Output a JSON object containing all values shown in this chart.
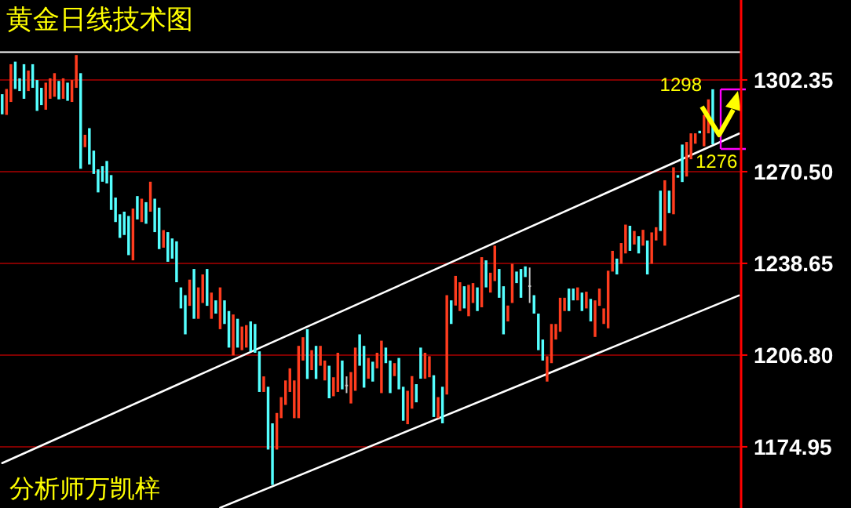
{
  "chart_data": {
    "type": "candlestick",
    "title": "黄金日线技术图",
    "annotations": [
      "分析师万凯梓",
      "1298",
      "1276"
    ],
    "categories": [
      null,
      null,
      null,
      null,
      null,
      null,
      null,
      null,
      null,
      null,
      null,
      null,
      null,
      null,
      null,
      null,
      null,
      null,
      null,
      null,
      null,
      null,
      null,
      null,
      null,
      null,
      null,
      null,
      null,
      null,
      null,
      null,
      null,
      null,
      null,
      null,
      null,
      null,
      null,
      null,
      null,
      null,
      null,
      null,
      null,
      null,
      null,
      null,
      null,
      null,
      null,
      null,
      null,
      null,
      null,
      null,
      null,
      null,
      null,
      null,
      null,
      null,
      null,
      null,
      null,
      null,
      null,
      null,
      null,
      null,
      null,
      null,
      null,
      null,
      null,
      null,
      null,
      null,
      null,
      null,
      null,
      null,
      null,
      null,
      null,
      null,
      null,
      null,
      null,
      null,
      null,
      null,
      null,
      null,
      null,
      null,
      null,
      null,
      null,
      null,
      null,
      null,
      null,
      null,
      null,
      null,
      null,
      null,
      null,
      null,
      null,
      null,
      null,
      null,
      null,
      null,
      null,
      null,
      null,
      null,
      null,
      null,
      null,
      null,
      null,
      null,
      null,
      null,
      null,
      null,
      null,
      null,
      null,
      null,
      null,
      null,
      null,
      null,
      null,
      null,
      null,
      null,
      null,
      null,
      null,
      null,
      null,
      null,
      null,
      null,
      null,
      null,
      null,
      null,
      null,
      null,
      null,
      null,
      null,
      null,
      null,
      null,
      null,
      null,
      null,
      null,
      null,
      null,
      null,
      null
    ],
    "ohlc": [
      [
        1297.4,
        1297.4,
        1290.4,
        1290.4
      ],
      [
        1290.2,
        1299.2,
        1290.2,
        1299.2
      ],
      [
        1294.7,
        1307.8,
        1294.7,
        1307.8
      ],
      [
        1308.7,
        1308.7,
        1299.2,
        1299.2
      ],
      [
        1302.9,
        1302.9,
        1298.5,
        1298.5
      ],
      [
        1307.8,
        1307.8,
        1295.8,
        1295.8
      ],
      [
        1298.5,
        1305.6,
        1298.5,
        1305.6
      ],
      [
        1307.8,
        1307.8,
        1299.6,
        1299.6
      ],
      [
        1302.3,
        1302.3,
        1291.6,
        1291.6
      ],
      [
        1299.6,
        1299.6,
        1293.6,
        1293.6
      ],
      [
        1292.0,
        1301.4,
        1292.0,
        1301.4
      ],
      [
        1295.8,
        1302.9,
        1295.8,
        1302.9
      ],
      [
        1296.5,
        1304.7,
        1296.5,
        1304.7
      ],
      [
        1302.0,
        1302.0,
        1295.6,
        1295.6
      ],
      [
        1295.8,
        1302.9,
        1295.8,
        1302.9
      ],
      [
        1301.4,
        1301.4,
        1295.1,
        1295.1
      ],
      [
        1294.7,
        1302.3,
        1294.7,
        1302.3
      ],
      [
        1299.6,
        1311.0,
        1299.6,
        1311.0
      ],
      [
        1304.7,
        1304.7,
        1271.5,
        1271.5
      ],
      [
        1279.0,
        1283.3,
        1279.0,
        1283.3
      ],
      [
        1285.6,
        1285.6,
        1273.0,
        1273.0
      ],
      [
        1277.8,
        1277.8,
        1269.7,
        1269.7
      ],
      [
        1271.3,
        1271.3,
        1263.3,
        1263.3
      ],
      [
        1272.4,
        1272.4,
        1267.0,
        1267.0
      ],
      [
        1274.2,
        1274.2,
        1266.4,
        1266.4
      ],
      [
        1269.3,
        1269.3,
        1257.2,
        1257.2
      ],
      [
        1261.5,
        1261.5,
        1253.0,
        1253.0
      ],
      [
        1255.7,
        1255.7,
        1247.5,
        1247.5
      ],
      [
        1256.6,
        1256.6,
        1248.5,
        1248.5
      ],
      [
        1255.1,
        1255.1,
        1241.5,
        1241.5
      ],
      [
        1239.7,
        1257.7,
        1239.7,
        1257.7
      ],
      [
        1262.0,
        1262.0,
        1253.9,
        1253.9
      ],
      [
        1253.0,
        1261.1,
        1253.0,
        1261.1
      ],
      [
        1259.9,
        1259.9,
        1252.4,
        1252.4
      ],
      [
        1256.6,
        1267.0,
        1256.6,
        1267.0
      ],
      [
        1261.1,
        1261.1,
        1249.5,
        1249.5
      ],
      [
        1258.0,
        1258.0,
        1243.6,
        1243.6
      ],
      [
        1244.1,
        1250.2,
        1244.1,
        1250.2
      ],
      [
        1249.5,
        1249.5,
        1239.2,
        1239.2
      ],
      [
        1247.3,
        1247.3,
        1240.3,
        1240.3
      ],
      [
        1246.3,
        1246.3,
        1232.1,
        1232.1
      ],
      [
        1230.3,
        1230.3,
        1223.0,
        1223.0
      ],
      [
        1227.6,
        1227.6,
        1214.0,
        1214.0
      ],
      [
        1223.9,
        1233.0,
        1223.9,
        1233.0
      ],
      [
        1236.7,
        1236.7,
        1219.4,
        1219.4
      ],
      [
        1219.4,
        1230.3,
        1219.4,
        1230.3
      ],
      [
        1224.9,
        1234.8,
        1224.9,
        1234.8
      ],
      [
        1236.7,
        1236.7,
        1223.9,
        1223.9
      ],
      [
        1219.4,
        1228.5,
        1219.4,
        1228.5
      ],
      [
        1225.8,
        1225.8,
        1221.2,
        1221.2
      ],
      [
        1215.8,
        1230.3,
        1215.8,
        1230.3
      ],
      [
        1225.8,
        1225.8,
        1217.6,
        1217.6
      ],
      [
        1222.1,
        1222.1,
        1209.4,
        1209.4
      ],
      [
        1206.7,
        1220.9,
        1206.7,
        1220.9
      ],
      [
        1219.4,
        1219.4,
        1209.4,
        1209.4
      ],
      [
        1208.5,
        1216.7,
        1208.5,
        1216.7
      ],
      [
        1209.4,
        1217.2,
        1209.4,
        1217.2
      ],
      [
        1218.5,
        1218.5,
        1208.1,
        1208.1
      ],
      [
        1217.6,
        1217.6,
        1207.6,
        1207.6
      ],
      [
        1208.1,
        1208.1,
        1194.0,
        1194.0
      ],
      [
        1194.0,
        1199.4,
        1194.0,
        1199.4
      ],
      [
        1195.8,
        1195.8,
        1174.0,
        1174.0
      ],
      [
        1183.1,
        1183.1,
        1161.7,
        1161.7
      ],
      [
        1174.0,
        1186.7,
        1174.0,
        1186.7
      ],
      [
        1184.9,
        1192.2,
        1184.9,
        1192.2
      ],
      [
        1189.5,
        1198.0,
        1189.5,
        1198.0
      ],
      [
        1194.0,
        1202.2,
        1194.0,
        1202.2
      ],
      [
        1184.9,
        1198.0,
        1184.9,
        1198.0
      ],
      [
        1184.9,
        1210.0,
        1184.9,
        1210.0
      ],
      [
        1204.9,
        1213.0,
        1204.9,
        1213.0
      ],
      [
        1215.8,
        1215.8,
        1198.5,
        1198.5
      ],
      [
        1201.6,
        1208.5,
        1201.6,
        1208.5
      ],
      [
        1210.0,
        1210.0,
        1198.5,
        1198.5
      ],
      [
        1203.1,
        1210.0,
        1203.1,
        1210.0
      ],
      [
        1198.0,
        1204.9,
        1198.0,
        1204.9
      ],
      [
        1203.1,
        1203.1,
        1191.8,
        1191.8
      ],
      [
        1192.5,
        1199.1,
        1192.5,
        1199.1
      ],
      [
        1194.0,
        1207.6,
        1194.0,
        1207.6
      ],
      [
        1204.9,
        1204.9,
        1194.9,
        1194.9
      ],
      [
        1196.5,
        1199.4,
        1193.6,
        1196.5
      ],
      [
        1190.0,
        1200.9,
        1190.0,
        1200.9
      ],
      [
        1194.4,
        1209.4,
        1194.4,
        1209.4
      ],
      [
        1214.0,
        1214.0,
        1203.1,
        1203.1
      ],
      [
        1210.0,
        1210.0,
        1195.5,
        1195.5
      ],
      [
        1198.6,
        1205.8,
        1198.6,
        1205.8
      ],
      [
        1204.5,
        1204.5,
        1197.6,
        1197.6
      ],
      [
        1202.2,
        1207.6,
        1202.2,
        1207.6
      ],
      [
        1193.6,
        1211.8,
        1193.6,
        1211.8
      ],
      [
        1209.4,
        1209.4,
        1204.0,
        1204.0
      ],
      [
        1204.9,
        1204.9,
        1193.6,
        1193.6
      ],
      [
        1199.5,
        1204.0,
        1199.5,
        1204.0
      ],
      [
        1205.8,
        1205.8,
        1194.9,
        1194.9
      ],
      [
        1195.8,
        1195.8,
        1184.0,
        1184.0
      ],
      [
        1182.8,
        1194.4,
        1182.8,
        1194.4
      ],
      [
        1188.2,
        1199.5,
        1188.2,
        1199.5
      ],
      [
        1196.7,
        1196.7,
        1190.4,
        1190.4
      ],
      [
        1209.4,
        1209.4,
        1198.6,
        1198.6
      ],
      [
        1198.6,
        1207.6,
        1198.6,
        1207.6
      ],
      [
        1199.1,
        1206.4,
        1199.1,
        1206.4
      ],
      [
        1199.8,
        1199.8,
        1185.3,
        1185.3
      ],
      [
        1184.9,
        1192.2,
        1184.9,
        1192.2
      ],
      [
        1195.8,
        1195.8,
        1183.1,
        1183.1
      ],
      [
        1193.1,
        1227.6,
        1193.1,
        1227.6
      ],
      [
        1225.8,
        1225.8,
        1217.6,
        1217.6
      ],
      [
        1224.0,
        1234.3,
        1224.0,
        1234.3
      ],
      [
        1222.1,
        1232.1,
        1222.1,
        1232.1
      ],
      [
        1230.7,
        1230.7,
        1223.0,
        1223.0
      ],
      [
        1220.3,
        1231.2,
        1220.3,
        1231.2
      ],
      [
        1224.9,
        1231.8,
        1224.9,
        1231.8
      ],
      [
        1230.3,
        1230.3,
        1222.1,
        1222.1
      ],
      [
        1223.4,
        1240.8,
        1223.4,
        1240.8
      ],
      [
        1239.7,
        1239.7,
        1230.3,
        1230.3
      ],
      [
        1228.5,
        1235.4,
        1228.5,
        1235.4
      ],
      [
        1232.5,
        1244.8,
        1232.5,
        1244.8
      ],
      [
        1236.7,
        1236.7,
        1226.7,
        1226.7
      ],
      [
        1230.7,
        1230.7,
        1214.0,
        1214.0
      ],
      [
        1218.5,
        1224.0,
        1218.5,
        1224.0
      ],
      [
        1224.9,
        1238.5,
        1224.9,
        1238.5
      ],
      [
        1235.8,
        1235.8,
        1231.8,
        1231.8
      ],
      [
        1236.7,
        1236.7,
        1226.7,
        1226.7
      ],
      [
        1237.6,
        1237.6,
        1233.9,
        1233.9
      ],
      [
        1231.0,
        1237.2,
        1224.9,
        1231.0
      ],
      [
        1227.6,
        1227.6,
        1221.2,
        1221.2
      ],
      [
        1221.2,
        1221.2,
        1208.5,
        1208.5
      ],
      [
        1212.2,
        1212.2,
        1204.9,
        1204.9
      ],
      [
        1197.6,
        1206.4,
        1197.6,
        1206.4
      ],
      [
        1204.0,
        1217.6,
        1204.0,
        1217.6
      ],
      [
        1212.2,
        1217.6,
        1212.2,
        1217.6
      ],
      [
        1214.9,
        1226.7,
        1214.9,
        1226.7
      ],
      [
        1222.1,
        1226.7,
        1222.1,
        1226.7
      ],
      [
        1229.9,
        1229.9,
        1222.1,
        1222.1
      ],
      [
        1229.9,
        1229.9,
        1225.8,
        1225.8
      ],
      [
        1225.8,
        1230.3,
        1225.8,
        1230.3
      ],
      [
        1228.5,
        1228.5,
        1222.1,
        1222.1
      ],
      [
        1223.0,
        1228.8,
        1223.0,
        1228.8
      ],
      [
        1226.3,
        1226.3,
        1218.5,
        1218.5
      ],
      [
        1213.1,
        1225.8,
        1213.1,
        1225.8
      ],
      [
        1223.9,
        1229.9,
        1223.9,
        1229.9
      ],
      [
        1217.6,
        1223.0,
        1217.6,
        1223.0
      ],
      [
        1216.1,
        1236.1,
        1216.1,
        1236.1
      ],
      [
        1235.8,
        1243.0,
        1235.8,
        1243.0
      ],
      [
        1240.3,
        1240.3,
        1234.8,
        1234.8
      ],
      [
        1238.5,
        1245.7,
        1238.5,
        1245.7
      ],
      [
        1242.1,
        1252.1,
        1242.1,
        1252.1
      ],
      [
        1251.7,
        1251.7,
        1243.0,
        1243.0
      ],
      [
        1245.2,
        1249.9,
        1245.2,
        1249.9
      ],
      [
        1248.1,
        1248.1,
        1242.1,
        1242.1
      ],
      [
        1244.8,
        1250.3,
        1244.8,
        1250.3
      ],
      [
        1246.6,
        1246.6,
        1234.8,
        1234.8
      ],
      [
        1238.5,
        1249.4,
        1238.5,
        1249.4
      ],
      [
        1246.6,
        1251.2,
        1246.6,
        1251.2
      ],
      [
        1263.9,
        1263.9,
        1249.9,
        1249.9
      ],
      [
        1244.8,
        1267.5,
        1244.8,
        1267.5
      ],
      [
        1263.9,
        1263.9,
        1256.1,
        1256.1
      ],
      [
        1255.7,
        1272.0,
        1255.7,
        1272.0
      ],
      [
        1269.3,
        1269.3,
        1268.4,
        1268.4
      ],
      [
        1279.9,
        1279.9,
        1266.9,
        1266.9
      ],
      [
        1268.8,
        1280.8,
        1268.8,
        1280.8
      ],
      [
        1274.8,
        1283.8,
        1274.8,
        1283.8
      ],
      [
        1280.2,
        1283.8,
        1280.2,
        1283.8
      ],
      [
        1284.7,
        1284.7,
        1283.8,
        1283.8
      ],
      [
        1279.3,
        1290.2,
        1279.3,
        1290.2
      ],
      [
        1283.8,
        1295.6,
        1283.8,
        1295.6
      ],
      [
        1299.1,
        1299.1,
        1280.0,
        1280.0
      ],
      null,
      null,
      null,
      null,
      null,
      null
    ],
    "colors": [
      "#54ffff",
      "#ff3c1e",
      "#ff3c1e",
      "#54ffff",
      "#54ffff",
      "#54ffff",
      "#ff3c1e",
      "#54ffff",
      "#54ffff",
      "#54ffff",
      "#ff3c1e",
      "#ff3c1e",
      "#ff3c1e",
      "#54ffff",
      "#ff3c1e",
      "#54ffff",
      "#ff3c1e",
      "#ff3c1e",
      "#54ffff",
      "#ff3c1e",
      "#54ffff",
      "#54ffff",
      "#54ffff",
      "#54ffff",
      "#54ffff",
      "#54ffff",
      "#54ffff",
      "#54ffff",
      "#54ffff",
      "#54ffff",
      "#ff3c1e",
      "#54ffff",
      "#ff3c1e",
      "#54ffff",
      "#ff3c1e",
      "#54ffff",
      "#54ffff",
      "#ff3c1e",
      "#54ffff",
      "#54ffff",
      "#54ffff",
      "#54ffff",
      "#54ffff",
      "#ff3c1e",
      "#54ffff",
      "#ff3c1e",
      "#ff3c1e",
      "#54ffff",
      "#ff3c1e",
      "#54ffff",
      "#ff3c1e",
      "#54ffff",
      "#54ffff",
      "#ff3c1e",
      "#54ffff",
      "#ff3c1e",
      "#ff3c1e",
      "#54ffff",
      "#54ffff",
      "#54ffff",
      "#ff3c1e",
      "#54ffff",
      "#54ffff",
      "#ff3c1e",
      "#ff3c1e",
      "#ff3c1e",
      "#ff3c1e",
      "#ff3c1e",
      "#ff3c1e",
      "#ff3c1e",
      "#54ffff",
      "#ff3c1e",
      "#54ffff",
      "#ff3c1e",
      "#ff3c1e",
      "#54ffff",
      "#ff3c1e",
      "#ff3c1e",
      "#54ffff",
      "#c8c8c8",
      "#ff3c1e",
      "#ff3c1e",
      "#54ffff",
      "#54ffff",
      "#ff3c1e",
      "#54ffff",
      "#ff3c1e",
      "#ff3c1e",
      "#54ffff",
      "#54ffff",
      "#ff3c1e",
      "#54ffff",
      "#54ffff",
      "#ff3c1e",
      "#ff3c1e",
      "#54ffff",
      "#54ffff",
      "#ff3c1e",
      "#ff3c1e",
      "#54ffff",
      "#ff3c1e",
      "#54ffff",
      "#ff3c1e",
      "#54ffff",
      "#ff3c1e",
      "#ff3c1e",
      "#54ffff",
      "#ff3c1e",
      "#ff3c1e",
      "#54ffff",
      "#ff3c1e",
      "#54ffff",
      "#ff3c1e",
      "#ff3c1e",
      "#54ffff",
      "#54ffff",
      "#ff3c1e",
      "#ff3c1e",
      "#54ffff",
      "#54ffff",
      "#54ffff",
      "#c8c8c8",
      "#54ffff",
      "#54ffff",
      "#54ffff",
      "#ff3c1e",
      "#ff3c1e",
      "#ff3c1e",
      "#ff3c1e",
      "#ff3c1e",
      "#54ffff",
      "#54ffff",
      "#ff3c1e",
      "#54ffff",
      "#ff3c1e",
      "#54ffff",
      "#ff3c1e",
      "#ff3c1e",
      "#ff3c1e",
      "#ff3c1e",
      "#ff3c1e",
      "#54ffff",
      "#ff3c1e",
      "#ff3c1e",
      "#54ffff",
      "#ff3c1e",
      "#54ffff",
      "#ff3c1e",
      "#54ffff",
      "#ff3c1e",
      "#ff3c1e",
      "#54ffff",
      "#ff3c1e",
      "#54ffff",
      "#ff3c1e",
      "#54ffff",
      "#54ffff",
      "#ff3c1e",
      "#ff3c1e",
      "#ff3c1e",
      "#54ffff",
      "#ff3c1e",
      "#ff3c1e",
      "#54ffff",
      null,
      null,
      null,
      null,
      null,
      null
    ],
    "series": [
      {
        "type": "line",
        "color": "#ffffff",
        "values": [
          1169.3,
          null,
          null,
          null,
          null,
          null,
          null,
          null,
          null,
          null,
          null,
          null,
          null,
          null,
          null,
          null,
          null,
          null,
          null,
          null,
          null,
          null,
          null,
          null,
          null,
          null,
          null,
          null,
          null,
          null,
          null,
          null,
          null,
          null,
          null,
          null,
          null,
          null,
          null,
          null,
          null,
          null,
          null,
          null,
          null,
          null,
          null,
          null,
          null,
          null,
          null,
          null,
          null,
          null,
          null,
          null,
          null,
          null,
          null,
          null,
          null,
          null,
          null,
          null,
          null,
          null,
          null,
          null,
          null,
          null,
          null,
          null,
          null,
          null,
          null,
          null,
          null,
          null,
          null,
          null,
          null,
          null,
          null,
          null,
          null,
          null,
          null,
          null,
          null,
          null,
          null,
          null,
          null,
          null,
          null,
          null,
          null,
          null,
          null,
          null,
          null,
          null,
          null,
          null,
          null,
          null,
          null,
          null,
          null,
          null,
          null,
          null,
          null,
          null,
          null,
          null,
          null,
          null,
          null,
          null,
          null,
          null,
          null,
          null,
          null,
          null,
          null,
          null,
          null,
          null,
          null,
          null,
          null,
          null,
          null,
          null,
          null,
          null,
          null,
          null,
          null,
          null,
          null,
          null,
          null,
          null,
          null,
          null,
          null,
          null,
          null,
          null,
          null,
          null,
          null,
          null,
          null,
          null,
          null,
          null,
          null,
          null,
          null,
          null,
          null,
          null,
          null,
          null,
          null,
          1283.7
        ]
      },
      {
        "type": "line",
        "color": "#ffffff",
        "values": [
          null,
          null,
          null,
          null,
          null,
          null,
          null,
          null,
          null,
          null,
          null,
          null,
          null,
          null,
          null,
          null,
          null,
          null,
          null,
          null,
          null,
          null,
          null,
          null,
          null,
          null,
          null,
          null,
          null,
          null,
          null,
          null,
          null,
          null,
          null,
          null,
          null,
          null,
          null,
          null,
          null,
          null,
          null,
          null,
          null,
          null,
          null,
          null,
          null,
          null,
          1153.8,
          null,
          null,
          null,
          null,
          null,
          null,
          null,
          null,
          null,
          null,
          null,
          null,
          null,
          null,
          null,
          null,
          null,
          null,
          null,
          null,
          null,
          null,
          null,
          null,
          null,
          null,
          null,
          null,
          null,
          null,
          null,
          null,
          null,
          null,
          null,
          null,
          null,
          null,
          null,
          null,
          null,
          null,
          null,
          null,
          null,
          null,
          null,
          null,
          null,
          null,
          null,
          null,
          null,
          null,
          null,
          null,
          null,
          null,
          null,
          null,
          null,
          null,
          null,
          null,
          null,
          null,
          null,
          null,
          null,
          null,
          null,
          null,
          null,
          null,
          null,
          null,
          null,
          null,
          null,
          null,
          null,
          null,
          null,
          null,
          null,
          null,
          null,
          null,
          null,
          null,
          null,
          null,
          null,
          null,
          null,
          null,
          null,
          null,
          null,
          null,
          null,
          null,
          null,
          null,
          null,
          null,
          null,
          null,
          null,
          null,
          null,
          null,
          null,
          null,
          null,
          null,
          null,
          null,
          1227.5
        ]
      }
    ],
    "ref_lines": [
      {
        "axis": "y",
        "value": 1312,
        "color": "#ffffff"
      }
    ],
    "ylim": [
      1153.7,
      1330.1
    ],
    "yticks": [
      {
        "value": 1174.95,
        "label": "1174.95"
      },
      {
        "value": 1206.8,
        "label": "1206.80"
      },
      {
        "value": 1238.65,
        "label": "1238.65"
      },
      {
        "value": 1270.5,
        "label": "1270.50"
      },
      {
        "value": 1302.35,
        "label": "1302.35"
      }
    ],
    "grid": "y",
    "tick_labels": "y"
  }
}
